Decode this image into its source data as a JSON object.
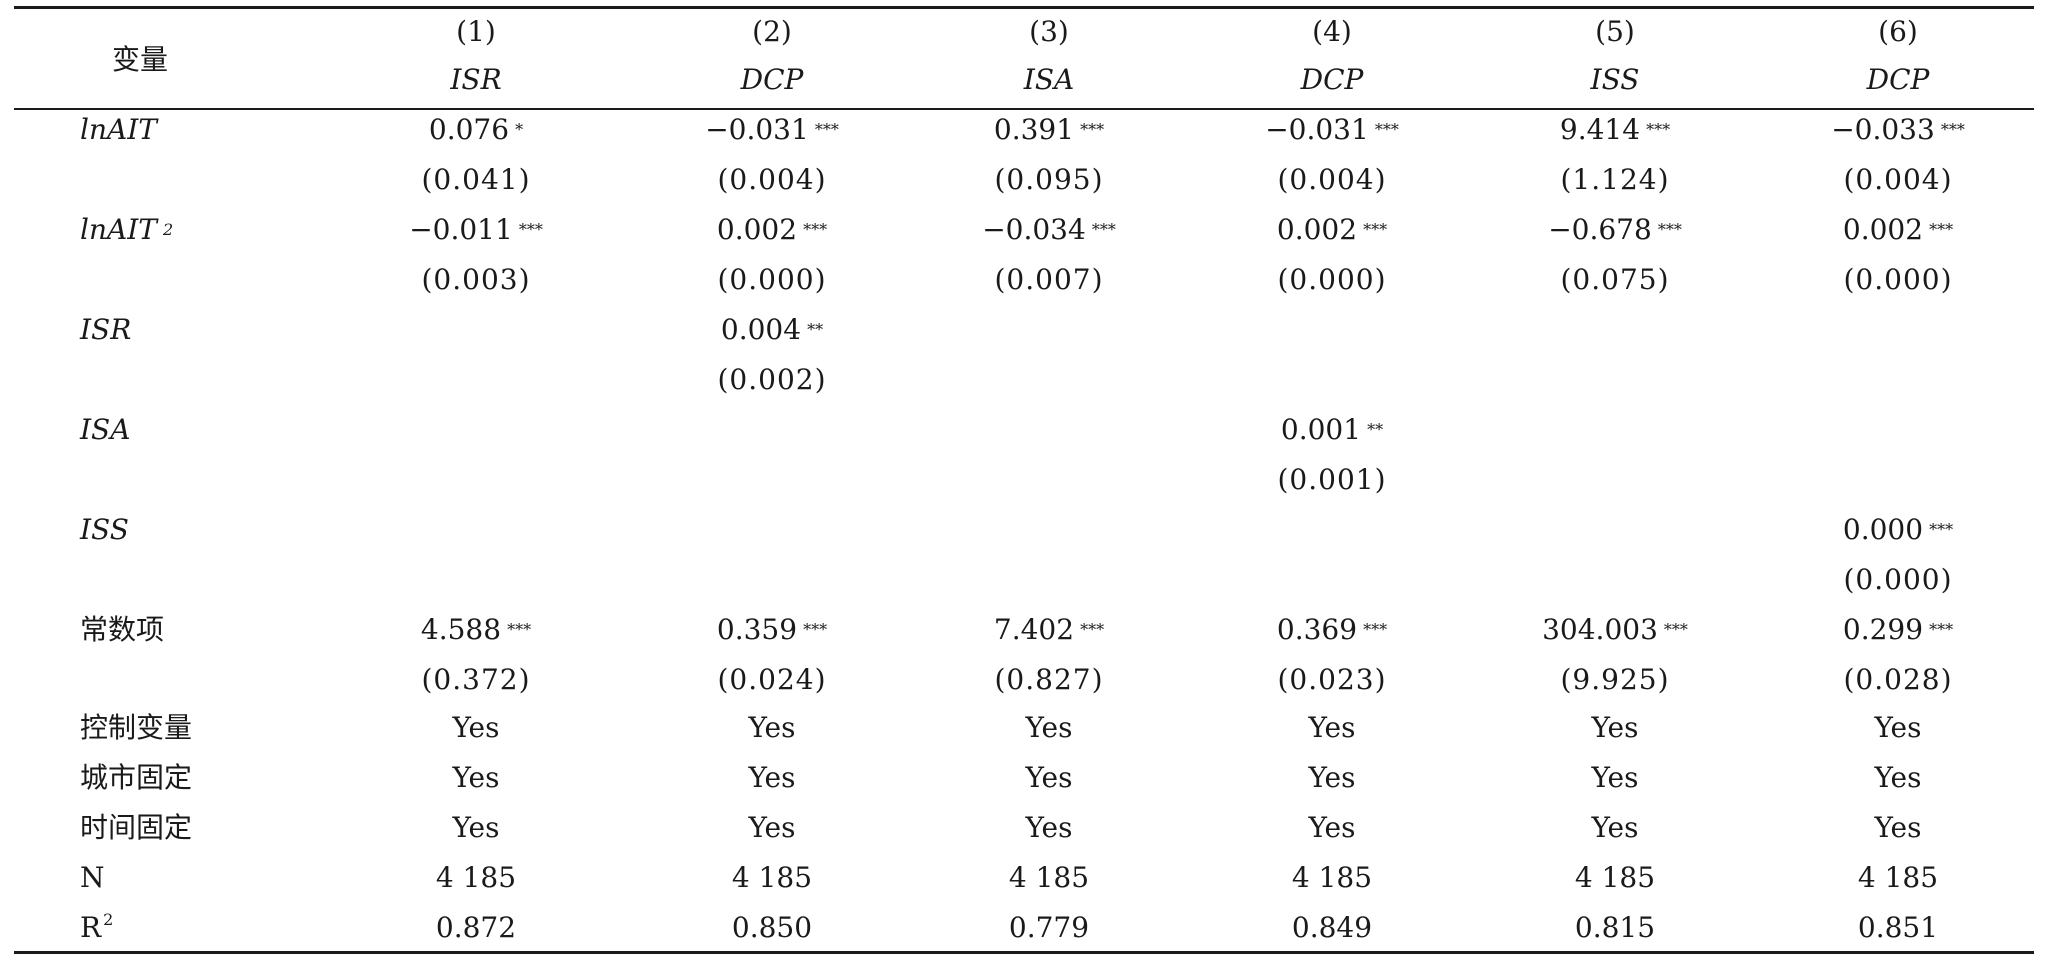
{
  "header": {
    "variable_label": "变量",
    "columns": [
      {
        "number": "(1)",
        "dep": "ISR"
      },
      {
        "number": "(2)",
        "dep": "DCP"
      },
      {
        "number": "(3)",
        "dep": "ISA"
      },
      {
        "number": "(4)",
        "dep": "DCP"
      },
      {
        "number": "(5)",
        "dep": "ISS"
      },
      {
        "number": "(6)",
        "dep": "DCP"
      }
    ]
  },
  "rows": [
    {
      "label": "lnAIT",
      "italic": true,
      "coef": [
        [
          "0.076",
          "*"
        ],
        [
          "−0.031",
          "***"
        ],
        [
          "0.391",
          "***"
        ],
        [
          "−0.031",
          "***"
        ],
        [
          "9.414",
          "***"
        ],
        [
          "−0.033",
          "***"
        ]
      ],
      "se": [
        "(0.041)",
        "(0.004)",
        "(0.095)",
        "(0.004)",
        "(1.124)",
        "(0.004)"
      ]
    },
    {
      "label": "lnAIT",
      "label_sup": "2",
      "italic": true,
      "coef": [
        [
          "−0.011",
          "***"
        ],
        [
          "0.002",
          "***"
        ],
        [
          "−0.034",
          "***"
        ],
        [
          "0.002",
          "***"
        ],
        [
          "−0.678",
          "***"
        ],
        [
          "0.002",
          "***"
        ]
      ],
      "se": [
        "(0.003)",
        "(0.000)",
        "(0.007)",
        "(0.000)",
        "(0.075)",
        "(0.000)"
      ]
    },
    {
      "label": "ISR",
      "italic": true,
      "coef": [
        [
          "",
          ""
        ],
        [
          "0.004",
          "**"
        ],
        [
          "",
          ""
        ],
        [
          "",
          ""
        ],
        [
          "",
          ""
        ],
        [
          "",
          ""
        ]
      ],
      "se": [
        "",
        "(0.002)",
        "",
        "",
        "",
        ""
      ]
    },
    {
      "label": "ISA",
      "italic": true,
      "coef": [
        [
          "",
          ""
        ],
        [
          "",
          ""
        ],
        [
          "",
          ""
        ],
        [
          "0.001",
          "**"
        ],
        [
          "",
          ""
        ],
        [
          "",
          ""
        ]
      ],
      "se": [
        "",
        "",
        "",
        "(0.001)",
        "",
        ""
      ]
    },
    {
      "label": "ISS",
      "italic": true,
      "coef": [
        [
          "",
          ""
        ],
        [
          "",
          ""
        ],
        [
          "",
          ""
        ],
        [
          "",
          ""
        ],
        [
          "",
          ""
        ],
        [
          "0.000",
          "***"
        ]
      ],
      "se": [
        "",
        "",
        "",
        "",
        "",
        "(0.000)"
      ]
    },
    {
      "label": "常数项",
      "italic": false,
      "coef": [
        [
          "4.588",
          "***"
        ],
        [
          "0.359",
          "***"
        ],
        [
          "7.402",
          "***"
        ],
        [
          "0.369",
          "***"
        ],
        [
          "304.003",
          "***"
        ],
        [
          "0.299",
          "***"
        ]
      ],
      "se": [
        "(0.372)",
        "(0.024)",
        "(0.827)",
        "(0.023)",
        "(9.925)",
        "(0.028)"
      ]
    }
  ],
  "footer_rows": [
    {
      "label": "控制变量",
      "values": [
        "Yes",
        "Yes",
        "Yes",
        "Yes",
        "Yes",
        "Yes"
      ]
    },
    {
      "label": "城市固定",
      "values": [
        "Yes",
        "Yes",
        "Yes",
        "Yes",
        "Yes",
        "Yes"
      ]
    },
    {
      "label": "时间固定",
      "values": [
        "Yes",
        "Yes",
        "Yes",
        "Yes",
        "Yes",
        "Yes"
      ]
    },
    {
      "label": "N",
      "values": [
        "4 185",
        "4 185",
        "4 185",
        "4 185",
        "4 185",
        "4 185"
      ]
    },
    {
      "label": "R",
      "label_sup": "2",
      "values": [
        "0.872",
        "0.850",
        "0.779",
        "0.849",
        "0.815",
        "0.851"
      ]
    }
  ]
}
